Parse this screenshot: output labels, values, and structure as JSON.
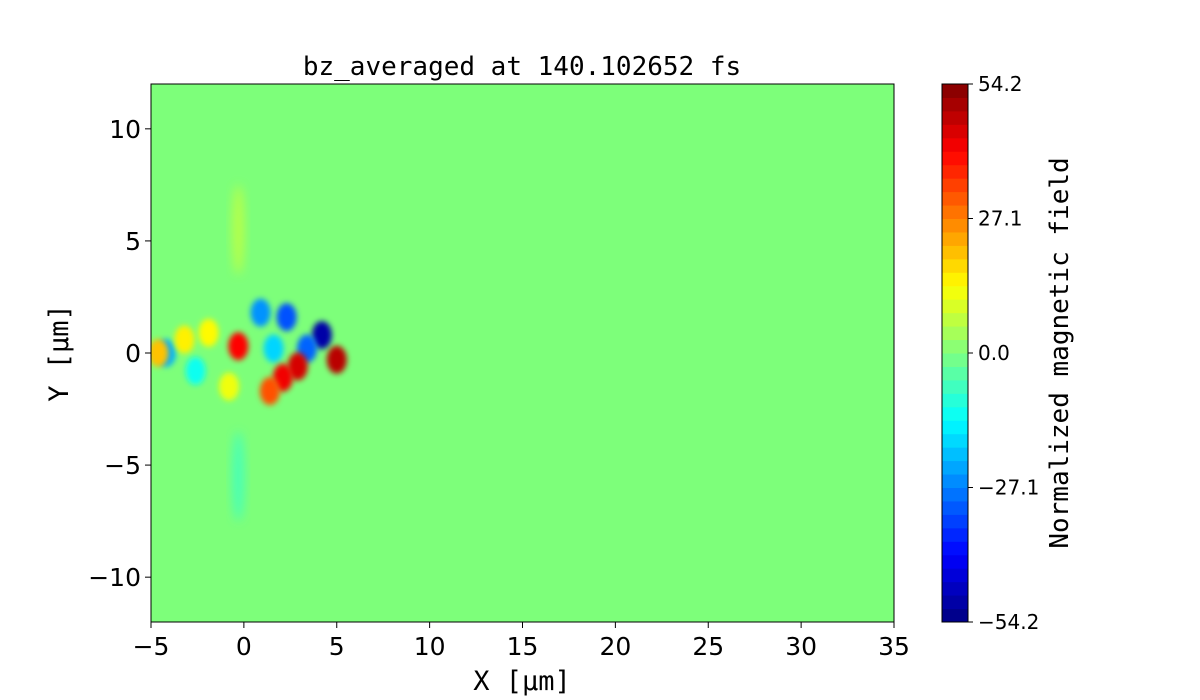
{
  "chart_data": {
    "type": "heatmap",
    "title": "bz_averaged at 140.102652 fs",
    "xlabel": "X [μm]",
    "ylabel": "Y [μm]",
    "xlim": [
      -5,
      35
    ],
    "ylim": [
      -12,
      12
    ],
    "x_ticks": [
      -5,
      0,
      5,
      10,
      15,
      20,
      25,
      30,
      35
    ],
    "x_tick_labels": [
      "−5",
      "0",
      "5",
      "10",
      "15",
      "20",
      "25",
      "30",
      "35"
    ],
    "y_ticks": [
      10,
      5,
      0,
      -5,
      -10
    ],
    "y_tick_labels": [
      "10",
      "5",
      "0",
      "−5",
      "−10"
    ],
    "background_value": 0.0,
    "colormap": "jet",
    "colorbar": {
      "label": "Normalized magnetic field",
      "min": -54.2,
      "max": 54.2,
      "ticks": [
        54.2,
        27.1,
        0.0,
        -27.1,
        -54.2
      ],
      "tick_labels": [
        "54.2",
        "27.1",
        "0.0",
        "−27.1",
        "−54.2"
      ]
    },
    "features": [
      {
        "x": 4.2,
        "y": 0.8,
        "value": -50
      },
      {
        "x": 3.4,
        "y": 0.2,
        "value": -30
      },
      {
        "x": 2.3,
        "y": 1.6,
        "value": -32
      },
      {
        "x": 0.9,
        "y": 1.8,
        "value": -25
      },
      {
        "x": 1.6,
        "y": 0.2,
        "value": -18
      },
      {
        "x": 5.0,
        "y": -0.3,
        "value": 48
      },
      {
        "x": 2.9,
        "y": -0.6,
        "value": 45
      },
      {
        "x": 2.1,
        "y": -1.1,
        "value": 42
      },
      {
        "x": 1.4,
        "y": -1.7,
        "value": 32
      },
      {
        "x": -0.3,
        "y": 0.3,
        "value": 40
      },
      {
        "x": -4.2,
        "y": 0.0,
        "value": -22
      },
      {
        "x": -4.6,
        "y": 0.0,
        "value": 20
      },
      {
        "x": -3.2,
        "y": 0.6,
        "value": 15
      },
      {
        "x": -1.9,
        "y": 0.9,
        "value": 14
      },
      {
        "x": -2.6,
        "y": -0.8,
        "value": -12
      },
      {
        "x": -0.8,
        "y": -1.5,
        "value": 12
      },
      {
        "x": -0.3,
        "y": 5.5,
        "value": 6
      },
      {
        "x": -0.3,
        "y": -5.5,
        "value": -6
      }
    ]
  }
}
